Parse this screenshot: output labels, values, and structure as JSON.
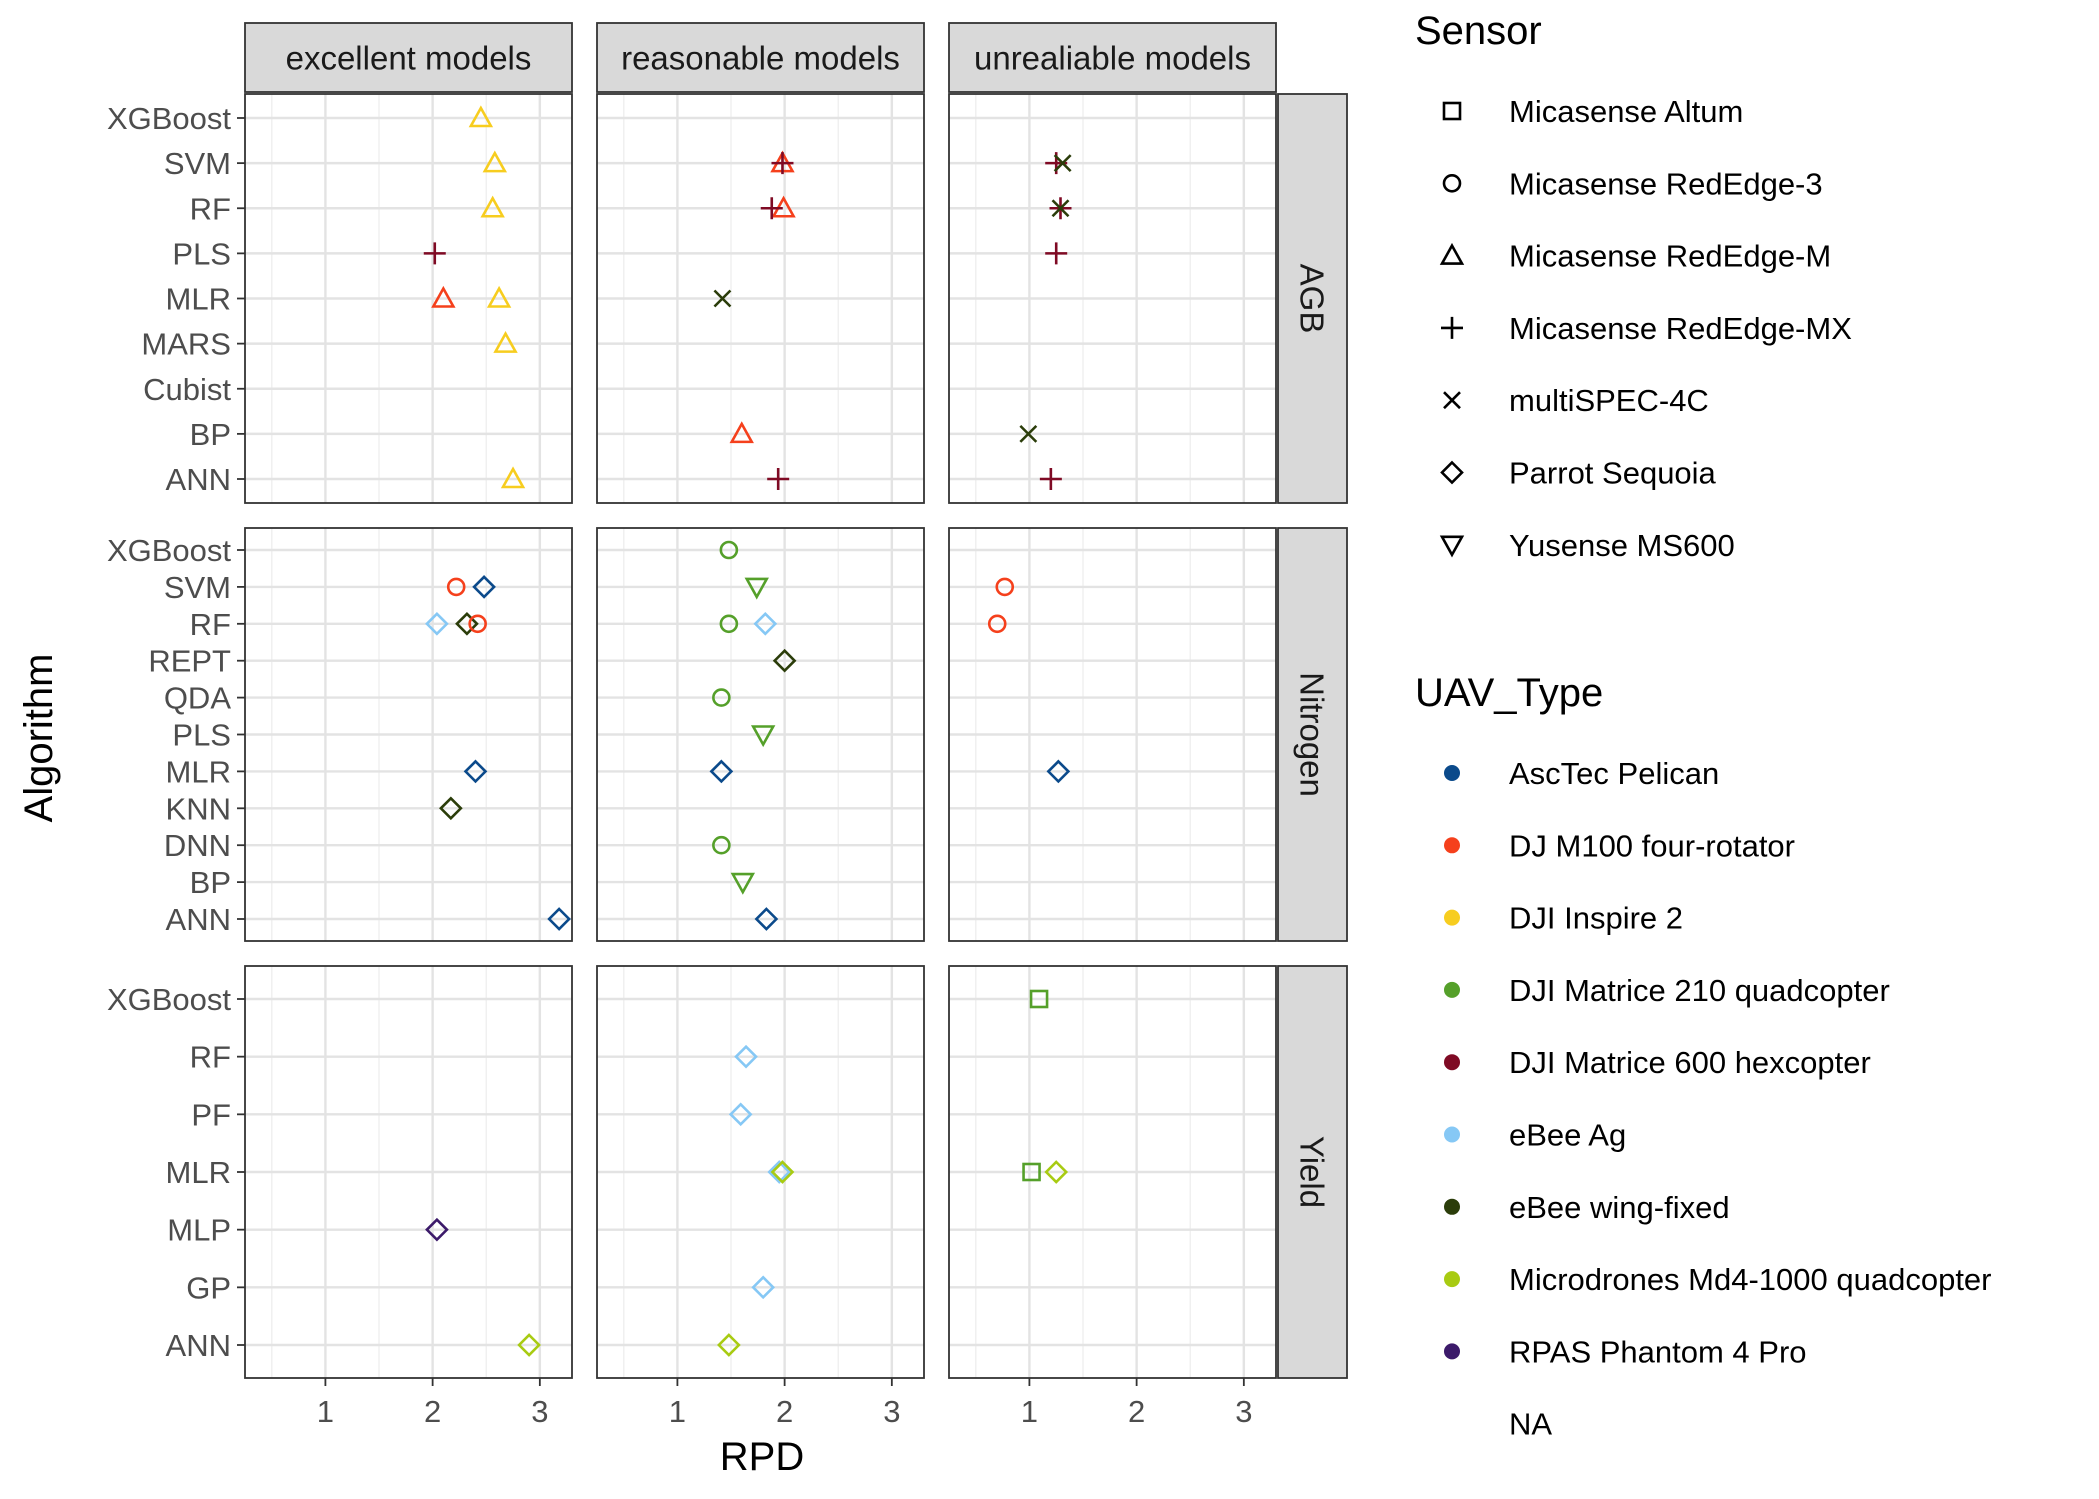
{
  "chart_data": {
    "type": "scatter",
    "xlabel": "RPD",
    "ylabel": "Algorithm",
    "xlim": [
      0.25,
      3.3
    ],
    "x_ticks": [
      1,
      2,
      3
    ],
    "grid": true,
    "facet_columns": [
      "excellent models",
      "reasonable models",
      "unrealiable models"
    ],
    "facet_rows": [
      {
        "name": "AGB",
        "categories": [
          "ANN",
          "BP",
          "Cubist",
          "MARS",
          "MLR",
          "PLS",
          "RF",
          "SVM",
          "XGBoost"
        ]
      },
      {
        "name": "Nitrogen",
        "categories": [
          "ANN",
          "BP",
          "DNN",
          "KNN",
          "MLR",
          "PLS",
          "QDA",
          "REPT",
          "RF",
          "SVM",
          "XGBoost"
        ]
      },
      {
        "name": "Yield",
        "categories": [
          "ANN",
          "GP",
          "MLP",
          "MLR",
          "PF",
          "RF",
          "XGBoost"
        ]
      }
    ],
    "points": [
      {
        "row": "AGB",
        "col": "excellent models",
        "algorithm": "XGBoost",
        "rpd": 2.45,
        "sensor": "Micasense RedEdge-M",
        "uav": "DJI Inspire 2"
      },
      {
        "row": "AGB",
        "col": "excellent models",
        "algorithm": "SVM",
        "rpd": 2.58,
        "sensor": "Micasense RedEdge-M",
        "uav": "DJI Inspire 2"
      },
      {
        "row": "AGB",
        "col": "excellent models",
        "algorithm": "RF",
        "rpd": 2.56,
        "sensor": "Micasense RedEdge-M",
        "uav": "DJI Inspire 2"
      },
      {
        "row": "AGB",
        "col": "excellent models",
        "algorithm": "PLS",
        "rpd": 2.02,
        "sensor": "Micasense RedEdge-MX",
        "uav": "DJI Matrice 600 hexcopter"
      },
      {
        "row": "AGB",
        "col": "excellent models",
        "algorithm": "MLR",
        "rpd": 2.1,
        "sensor": "Micasense RedEdge-M",
        "uav": "DJ M100 four-rotator"
      },
      {
        "row": "AGB",
        "col": "excellent models",
        "algorithm": "MLR",
        "rpd": 2.62,
        "sensor": "Micasense RedEdge-M",
        "uav": "DJI Inspire 2"
      },
      {
        "row": "AGB",
        "col": "excellent models",
        "algorithm": "MARS",
        "rpd": 2.68,
        "sensor": "Micasense RedEdge-M",
        "uav": "DJI Inspire 2"
      },
      {
        "row": "AGB",
        "col": "excellent models",
        "algorithm": "ANN",
        "rpd": 2.75,
        "sensor": "Micasense RedEdge-M",
        "uav": "DJI Inspire 2"
      },
      {
        "row": "AGB",
        "col": "reasonable models",
        "algorithm": "SVM",
        "rpd": 1.98,
        "sensor": "Micasense RedEdge-M",
        "uav": "DJ M100 four-rotator"
      },
      {
        "row": "AGB",
        "col": "reasonable models",
        "algorithm": "SVM",
        "rpd": 1.98,
        "sensor": "Micasense RedEdge-MX",
        "uav": "DJI Matrice 600 hexcopter"
      },
      {
        "row": "AGB",
        "col": "reasonable models",
        "algorithm": "RF",
        "rpd": 1.99,
        "sensor": "Micasense RedEdge-M",
        "uav": "DJ M100 four-rotator"
      },
      {
        "row": "AGB",
        "col": "reasonable models",
        "algorithm": "RF",
        "rpd": 1.88,
        "sensor": "Micasense RedEdge-MX",
        "uav": "DJI Matrice 600 hexcopter"
      },
      {
        "row": "AGB",
        "col": "reasonable models",
        "algorithm": "MLR",
        "rpd": 1.42,
        "sensor": "multiSPEC-4C",
        "uav": "eBee wing-fixed"
      },
      {
        "row": "AGB",
        "col": "reasonable models",
        "algorithm": "BP",
        "rpd": 1.6,
        "sensor": "Micasense RedEdge-M",
        "uav": "DJ M100 four-rotator"
      },
      {
        "row": "AGB",
        "col": "reasonable models",
        "algorithm": "ANN",
        "rpd": 1.94,
        "sensor": "Micasense RedEdge-MX",
        "uav": "DJI Matrice 600 hexcopter"
      },
      {
        "row": "AGB",
        "col": "unrealiable models",
        "algorithm": "SVM",
        "rpd": 1.25,
        "sensor": "Micasense RedEdge-MX",
        "uav": "DJI Matrice 600 hexcopter"
      },
      {
        "row": "AGB",
        "col": "unrealiable models",
        "algorithm": "SVM",
        "rpd": 1.31,
        "sensor": "multiSPEC-4C",
        "uav": "eBee wing-fixed"
      },
      {
        "row": "AGB",
        "col": "unrealiable models",
        "algorithm": "RF",
        "rpd": 1.29,
        "sensor": "Micasense RedEdge-MX",
        "uav": "DJI Matrice 600 hexcopter"
      },
      {
        "row": "AGB",
        "col": "unrealiable models",
        "algorithm": "RF",
        "rpd": 1.29,
        "sensor": "multiSPEC-4C",
        "uav": "eBee wing-fixed"
      },
      {
        "row": "AGB",
        "col": "unrealiable models",
        "algorithm": "PLS",
        "rpd": 1.25,
        "sensor": "Micasense RedEdge-MX",
        "uav": "DJI Matrice 600 hexcopter"
      },
      {
        "row": "AGB",
        "col": "unrealiable models",
        "algorithm": "BP",
        "rpd": 0.99,
        "sensor": "multiSPEC-4C",
        "uav": "eBee wing-fixed"
      },
      {
        "row": "AGB",
        "col": "unrealiable models",
        "algorithm": "ANN",
        "rpd": 1.2,
        "sensor": "Micasense RedEdge-MX",
        "uav": "DJI Matrice 600 hexcopter"
      },
      {
        "row": "Nitrogen",
        "col": "excellent models",
        "algorithm": "SVM",
        "rpd": 2.22,
        "sensor": "Micasense RedEdge-3",
        "uav": "DJ M100 four-rotator"
      },
      {
        "row": "Nitrogen",
        "col": "excellent models",
        "algorithm": "SVM",
        "rpd": 2.48,
        "sensor": "Parrot Sequoia",
        "uav": "AscTec Pelican"
      },
      {
        "row": "Nitrogen",
        "col": "excellent models",
        "algorithm": "RF",
        "rpd": 2.04,
        "sensor": "Parrot Sequoia",
        "uav": "eBee Ag"
      },
      {
        "row": "Nitrogen",
        "col": "excellent models",
        "algorithm": "RF",
        "rpd": 2.32,
        "sensor": "Parrot Sequoia",
        "uav": "eBee wing-fixed"
      },
      {
        "row": "Nitrogen",
        "col": "excellent models",
        "algorithm": "RF",
        "rpd": 2.42,
        "sensor": "Micasense RedEdge-3",
        "uav": "DJ M100 four-rotator"
      },
      {
        "row": "Nitrogen",
        "col": "excellent models",
        "algorithm": "MLR",
        "rpd": 2.4,
        "sensor": "Parrot Sequoia",
        "uav": "AscTec Pelican"
      },
      {
        "row": "Nitrogen",
        "col": "excellent models",
        "algorithm": "KNN",
        "rpd": 2.17,
        "sensor": "Parrot Sequoia",
        "uav": "eBee wing-fixed"
      },
      {
        "row": "Nitrogen",
        "col": "excellent models",
        "algorithm": "ANN",
        "rpd": 3.18,
        "sensor": "Parrot Sequoia",
        "uav": "AscTec Pelican"
      },
      {
        "row": "Nitrogen",
        "col": "reasonable models",
        "algorithm": "XGBoost",
        "rpd": 1.48,
        "sensor": "Micasense RedEdge-3",
        "uav": "DJI Matrice 210 quadcopter"
      },
      {
        "row": "Nitrogen",
        "col": "reasonable models",
        "algorithm": "SVM",
        "rpd": 1.74,
        "sensor": "Yusense MS600",
        "uav": "DJI Matrice 210 quadcopter"
      },
      {
        "row": "Nitrogen",
        "col": "reasonable models",
        "algorithm": "RF",
        "rpd": 1.48,
        "sensor": "Micasense RedEdge-3",
        "uav": "DJI Matrice 210 quadcopter"
      },
      {
        "row": "Nitrogen",
        "col": "reasonable models",
        "algorithm": "RF",
        "rpd": 1.82,
        "sensor": "Parrot Sequoia",
        "uav": "eBee Ag"
      },
      {
        "row": "Nitrogen",
        "col": "reasonable models",
        "algorithm": "REPT",
        "rpd": 2.0,
        "sensor": "Parrot Sequoia",
        "uav": "eBee wing-fixed"
      },
      {
        "row": "Nitrogen",
        "col": "reasonable models",
        "algorithm": "QDA",
        "rpd": 1.41,
        "sensor": "Micasense RedEdge-3",
        "uav": "DJI Matrice 210 quadcopter"
      },
      {
        "row": "Nitrogen",
        "col": "reasonable models",
        "algorithm": "PLS",
        "rpd": 1.8,
        "sensor": "Yusense MS600",
        "uav": "DJI Matrice 210 quadcopter"
      },
      {
        "row": "Nitrogen",
        "col": "reasonable models",
        "algorithm": "MLR",
        "rpd": 1.41,
        "sensor": "Parrot Sequoia",
        "uav": "AscTec Pelican"
      },
      {
        "row": "Nitrogen",
        "col": "reasonable models",
        "algorithm": "DNN",
        "rpd": 1.41,
        "sensor": "Micasense RedEdge-3",
        "uav": "DJI Matrice 210 quadcopter"
      },
      {
        "row": "Nitrogen",
        "col": "reasonable models",
        "algorithm": "BP",
        "rpd": 1.61,
        "sensor": "Yusense MS600",
        "uav": "DJI Matrice 210 quadcopter"
      },
      {
        "row": "Nitrogen",
        "col": "reasonable models",
        "algorithm": "ANN",
        "rpd": 1.83,
        "sensor": "Parrot Sequoia",
        "uav": "AscTec Pelican"
      },
      {
        "row": "Nitrogen",
        "col": "unrealiable models",
        "algorithm": "SVM",
        "rpd": 0.77,
        "sensor": "Micasense RedEdge-3",
        "uav": "DJ M100 four-rotator"
      },
      {
        "row": "Nitrogen",
        "col": "unrealiable models",
        "algorithm": "RF",
        "rpd": 0.7,
        "sensor": "Micasense RedEdge-3",
        "uav": "DJ M100 four-rotator"
      },
      {
        "row": "Nitrogen",
        "col": "unrealiable models",
        "algorithm": "MLR",
        "rpd": 1.27,
        "sensor": "Parrot Sequoia",
        "uav": "AscTec Pelican"
      },
      {
        "row": "Yield",
        "col": "excellent models",
        "algorithm": "MLP",
        "rpd": 2.04,
        "sensor": "Parrot Sequoia",
        "uav": "RPAS Phantom 4 Pro"
      },
      {
        "row": "Yield",
        "col": "excellent models",
        "algorithm": "ANN",
        "rpd": 2.9,
        "sensor": "Parrot Sequoia",
        "uav": "Microdrones Md4-1000 quadcopter"
      },
      {
        "row": "Yield",
        "col": "reasonable models",
        "algorithm": "RF",
        "rpd": 1.64,
        "sensor": "Parrot Sequoia",
        "uav": "eBee Ag"
      },
      {
        "row": "Yield",
        "col": "reasonable models",
        "algorithm": "PF",
        "rpd": 1.59,
        "sensor": "Parrot Sequoia",
        "uav": "eBee Ag"
      },
      {
        "row": "Yield",
        "col": "reasonable models",
        "algorithm": "MLR",
        "rpd": 1.95,
        "sensor": "Parrot Sequoia",
        "uav": "eBee Ag"
      },
      {
        "row": "Yield",
        "col": "reasonable models",
        "algorithm": "MLR",
        "rpd": 1.98,
        "sensor": "Parrot Sequoia",
        "uav": "Microdrones Md4-1000 quadcopter"
      },
      {
        "row": "Yield",
        "col": "reasonable models",
        "algorithm": "GP",
        "rpd": 1.8,
        "sensor": "Parrot Sequoia",
        "uav": "eBee Ag"
      },
      {
        "row": "Yield",
        "col": "reasonable models",
        "algorithm": "ANN",
        "rpd": 1.48,
        "sensor": "Parrot Sequoia",
        "uav": "Microdrones Md4-1000 quadcopter"
      },
      {
        "row": "Yield",
        "col": "unrealiable models",
        "algorithm": "XGBoost",
        "rpd": 1.09,
        "sensor": "Micasense Altum",
        "uav": "DJI Matrice 210 quadcopter"
      },
      {
        "row": "Yield",
        "col": "unrealiable models",
        "algorithm": "MLR",
        "rpd": 1.02,
        "sensor": "Micasense Altum",
        "uav": "DJI Matrice 210 quadcopter"
      },
      {
        "row": "Yield",
        "col": "unrealiable models",
        "algorithm": "MLR",
        "rpd": 1.25,
        "sensor": "Parrot Sequoia",
        "uav": "Microdrones Md4-1000 quadcopter"
      }
    ],
    "legend_sensor": {
      "title": "Sensor",
      "placement": "right",
      "items": [
        {
          "label": "Micasense Altum",
          "shape": "square"
        },
        {
          "label": "Micasense RedEdge-3",
          "shape": "circle"
        },
        {
          "label": "Micasense RedEdge-M",
          "shape": "triangle"
        },
        {
          "label": "Micasense RedEdge-MX",
          "shape": "plus"
        },
        {
          "label": "multiSPEC-4C",
          "shape": "cross"
        },
        {
          "label": "Parrot Sequoia",
          "shape": "diamond"
        },
        {
          "label": "Yusense MS600",
          "shape": "triangle-down"
        }
      ]
    },
    "legend_uav": {
      "title": "UAV_Type",
      "placement": "right",
      "items": [
        {
          "label": "AscTec Pelican",
          "color": "#0b4a8b"
        },
        {
          "label": "DJ M100 four-rotator",
          "color": "#f5401c"
        },
        {
          "label": "DJI Inspire 2",
          "color": "#f7cd1f"
        },
        {
          "label": "DJI Matrice 210 quadcopter",
          "color": "#55a02a"
        },
        {
          "label": "DJI Matrice 600 hexcopter",
          "color": "#7f0a24"
        },
        {
          "label": "eBee Ag",
          "color": "#86c8f5"
        },
        {
          "label": "eBee wing-fixed",
          "color": "#2b3d0a"
        },
        {
          "label": "Microdrones Md4-1000 quadcopter",
          "color": "#a8cb12"
        },
        {
          "label": "RPAS Phantom 4 Pro",
          "color": "#3c1a6a"
        },
        {
          "label": "NA",
          "color": ""
        }
      ]
    }
  }
}
